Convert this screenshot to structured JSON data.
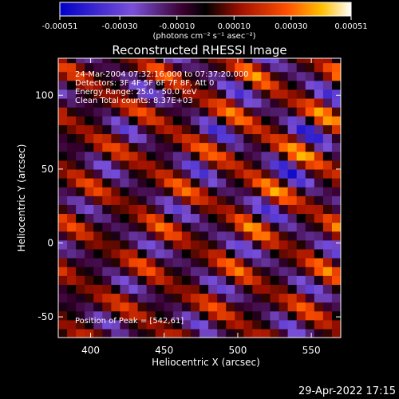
{
  "chart_data": {
    "type": "heatmap",
    "title": "Reconstructed RHESSI Image",
    "xlabel": "Heliocentric X (arcsec)",
    "ylabel": "Heliocentric Y (arcsec)",
    "xlim": [
      378,
      570
    ],
    "ylim": [
      -64,
      125
    ],
    "x_ticks": [
      400,
      450,
      500,
      550
    ],
    "y_ticks": [
      -50,
      0,
      50,
      100
    ],
    "colorbar": {
      "range": [
        -0.00051,
        0.00051
      ],
      "ticks": [
        "-0.00051",
        "-0.00030",
        "-0.00010",
        "0.00010",
        "0.00030",
        "0.00051"
      ],
      "tick_values": [
        -0.00051,
        -0.0003,
        -0.0001,
        0.0001,
        0.0003,
        0.00051
      ],
      "unit_label": "(photons cm⁻² s⁻¹ asec⁻²)"
    },
    "annotations": [
      "24-Mar-2004 07:32:16.000 to 07:37:20.000",
      "Detectors: 3F 4F 5F 6F 7F 8F, Att 0",
      "Energy Range: 25.0 - 50.0 keV",
      "Clean     Total counts: 8.37E+03"
    ],
    "peak_label": "Position of Peak = [542,61]",
    "peak": [
      542,
      61
    ],
    "stripe_angle_deg": 30,
    "stripe_spacing_arcsec": 30
  },
  "footer_date": "29-Apr-2022 17:15"
}
